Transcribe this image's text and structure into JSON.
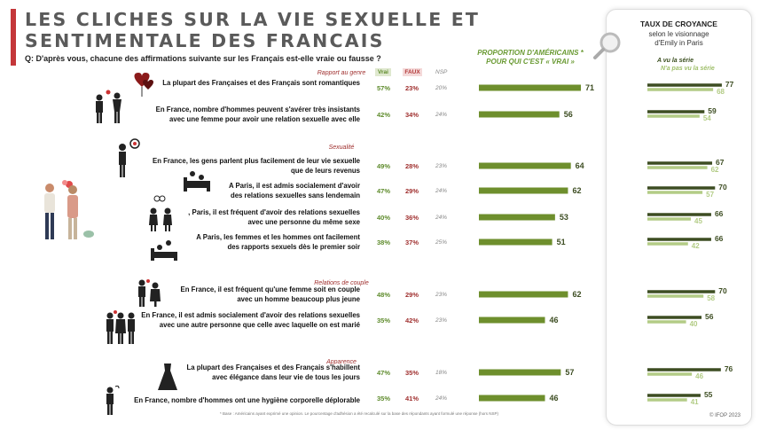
{
  "title_line1": "LES CLICHES SUR LA VIE SEXUELLE ET",
  "title_line2": "SENTIMENTALE DES FRANCAIS",
  "question": "Q: D'après vous, chacune des affirmations suivante sur les Français est-elle vraie ou fausse ?",
  "columns": {
    "vrai": "Vrai",
    "faux": "FAUX",
    "nsp": "NSP"
  },
  "proportion_header": "PROPORTION D'AMÉRICAINS * POUR QUI C'EST « VRAI »",
  "panel": {
    "title": "TAUX DE CROYANCE",
    "subtitle1": "selon le visionnage",
    "subtitle2": "d'Emily in Paris",
    "legend_seen": "A vu la série",
    "legend_not_seen": "N'a pas vu  la série"
  },
  "footnote": "* Base : Américains ayant exprimé une opinion. Le pourcentage d'adhésion a été recalculé sur la base des répondants ayant formulé une réponse (hors NSP)",
  "copyright": "© IFOP 2023",
  "colors": {
    "dark": "#3d4d22",
    "green": "#6e8f2d",
    "light": "#b3cc86",
    "red": "#c4373a"
  },
  "chart_data": {
    "type": "bar",
    "sections": [
      "Rapport au genre",
      "Sexualité",
      "Relations de couple",
      "Apparence"
    ],
    "rows": [
      {
        "section": 0,
        "label1": "La plupart des Françaises et des Français sont romantiques",
        "label2": "",
        "vrai": "57%",
        "faux": "23%",
        "nsp": "20%",
        "us_true": 71,
        "seen": 77,
        "not_seen": 68
      },
      {
        "section": 0,
        "label1": "En France, nombre d'hommes peuvent s'avérer très insistants",
        "label2": "avec une femme pour avoir une relation sexuelle avec elle",
        "vrai": "42%",
        "faux": "34%",
        "nsp": "24%",
        "us_true": 56,
        "seen": 59,
        "not_seen": 54
      },
      {
        "section": 1,
        "label1": "En France, les gens parlent plus facilement de leur vie sexuelle",
        "label2": "que de leurs revenus",
        "vrai": "49%",
        "faux": "28%",
        "nsp": "23%",
        "us_true": 64,
        "seen": 67,
        "not_seen": 62
      },
      {
        "section": 1,
        "label1": "A Paris, il est admis socialement d'avoir",
        "label2": "des relations sexuelles sans lendemain",
        "vrai": "47%",
        "faux": "29%",
        "nsp": "24%",
        "us_true": 62,
        "seen": 70,
        "not_seen": 57
      },
      {
        "section": 1,
        "label1": ", Paris, il est fréquent d'avoir des relations sexuelles",
        "label2": "avec une personne du même sexe",
        "vrai": "40%",
        "faux": "36%",
        "nsp": "24%",
        "us_true": 53,
        "seen": 66,
        "not_seen": 45
      },
      {
        "section": 1,
        "label1": "A Paris, les femmes et les hommes ont facilement",
        "label2": "des rapports sexuels dès le premier soir",
        "vrai": "38%",
        "faux": "37%",
        "nsp": "25%",
        "us_true": 51,
        "seen": 66,
        "not_seen": 42
      },
      {
        "section": 2,
        "label1": "En France, il est fréquent qu'une femme soit en couple",
        "label2": "avec un homme beaucoup plus jeune",
        "vrai": "48%",
        "faux": "29%",
        "nsp": "23%",
        "us_true": 62,
        "seen": 70,
        "not_seen": 58
      },
      {
        "section": 2,
        "label1": "En France, il est admis socialement d'avoir des relations sexuelles",
        "label2": "avec une autre personne que celle avec laquelle on est marié",
        "vrai": "35%",
        "faux": "42%",
        "nsp": "23%",
        "us_true": 46,
        "seen": 56,
        "not_seen": 40
      },
      {
        "section": 3,
        "label1": "La plupart des Françaises et des Français s'habillent",
        "label2": "avec élégance dans leur vie de tous les jours",
        "vrai": "47%",
        "faux": "35%",
        "nsp": "18%",
        "us_true": 57,
        "seen": 76,
        "not_seen": 46
      },
      {
        "section": 3,
        "label1": "",
        "label2": "En France, nombre d'hommes ont une hygiène corporelle déplorable",
        "vrai": "35%",
        "faux": "41%",
        "nsp": "24%",
        "us_true": 46,
        "seen": 55,
        "not_seen": 41
      }
    ]
  }
}
